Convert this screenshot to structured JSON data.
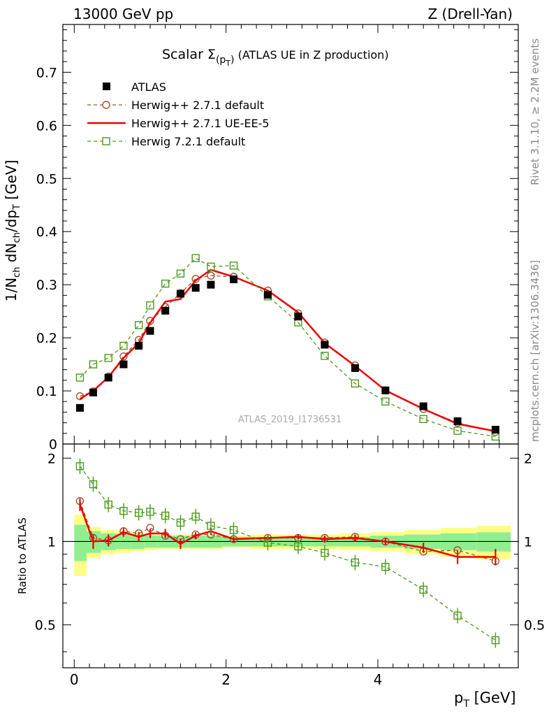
{
  "header": {
    "left": "13000 GeV pp",
    "right": "Z (Drell-Yan)"
  },
  "side_labels": {
    "top": "Rivet 3.1.10, ≥ 2.2M events",
    "bottom": "mcplots.cern.ch [arXiv:1306.3436]"
  },
  "chart_data": {
    "type": "line",
    "title_main": "Scalar Σ",
    "title_sub": "(p",
    "title_sub2": "T",
    "title_sub3": ")",
    "title_rest": " (ATLAS UE in Z production)",
    "analysis_label": "ATLAS_2019_I1736531",
    "xlabel": "p_T [GeV]",
    "xlabel_main": "p",
    "xlabel_sub": "T",
    "xlabel_unit": " [GeV]",
    "ylabel": "1/N_ch dN_ch/dp_T [GeV]",
    "ylabel_ratio": "Ratio to ATLAS",
    "xlim": [
      -0.15,
      5.85
    ],
    "ylim": [
      0,
      0.79
    ],
    "ratio_ylim": [
      0.35,
      2.25
    ],
    "x_ticks": [
      0,
      2,
      4
    ],
    "y_ticks": [
      0,
      0.1,
      0.2,
      0.3,
      0.4,
      0.5,
      0.6,
      0.7
    ],
    "y_tick_labels": [
      "0",
      "0.1",
      "0.2",
      "0.3",
      "0.4",
      "0.5",
      "0.6",
      "0.7"
    ],
    "ratio_ticks": [
      0.5,
      1,
      2
    ],
    "ratio_tick_labels": [
      "0.5",
      "1",
      "2"
    ],
    "x": [
      0.075,
      0.25,
      0.45,
      0.65,
      0.85,
      1.0,
      1.2,
      1.4,
      1.6,
      1.8,
      2.1,
      2.55,
      2.95,
      3.3,
      3.7,
      4.1,
      4.6,
      5.05,
      5.55
    ],
    "reference": {
      "name": "ATLAS",
      "values": [
        0.068,
        0.097,
        0.125,
        0.15,
        0.185,
        0.213,
        0.251,
        0.283,
        0.294,
        0.3,
        0.31,
        0.281,
        0.24,
        0.187,
        0.143,
        0.101,
        0.071,
        0.043,
        0.027
      ],
      "band_inner": [
        0.15,
        0.09,
        0.07,
        0.06,
        0.06,
        0.05,
        0.05,
        0.05,
        0.05,
        0.05,
        0.04,
        0.04,
        0.04,
        0.04,
        0.04,
        0.05,
        0.06,
        0.07,
        0.08
      ],
      "band_outer": [
        0.25,
        0.13,
        0.1,
        0.09,
        0.08,
        0.07,
        0.06,
        0.06,
        0.06,
        0.06,
        0.05,
        0.06,
        0.06,
        0.06,
        0.07,
        0.08,
        0.1,
        0.12,
        0.14
      ],
      "color": "#000000"
    },
    "series": [
      {
        "name": "Herwig++ 2.7.1 default",
        "values": [
          0.09,
          0.099,
          0.127,
          0.165,
          0.196,
          0.232,
          0.258,
          0.284,
          0.311,
          0.317,
          0.315,
          0.289,
          0.246,
          0.191,
          0.148,
          0.101,
          0.066,
          0.04,
          0.023
        ],
        "ratio": [
          1.4,
          1.03,
          1.01,
          1.09,
          1.07,
          1.12,
          1.05,
          1.02,
          1.06,
          1.06,
          1.02,
          1.03,
          1.03,
          1.03,
          1.04,
          1.0,
          0.92,
          0.93,
          0.85
        ],
        "color": "#a0522d",
        "style": "dashed",
        "marker": "circle"
      },
      {
        "name": "Herwig++ 2.7.1 UE-EE-5",
        "values": [
          0.085,
          0.1,
          0.126,
          0.162,
          0.19,
          0.228,
          0.268,
          0.273,
          0.308,
          0.328,
          0.315,
          0.289,
          0.248,
          0.19,
          0.147,
          0.101,
          0.066,
          0.038,
          0.024
        ],
        "ratio": [
          1.36,
          1.0,
          1.01,
          1.08,
          1.04,
          1.07,
          1.07,
          0.98,
          1.05,
          1.09,
          1.02,
          1.03,
          1.04,
          1.02,
          1.03,
          1.0,
          0.95,
          0.88,
          0.88
        ],
        "ratio_err": [
          0.07,
          0.06,
          0.05,
          0.04,
          0.04,
          0.04,
          0.04,
          0.04,
          0.03,
          0.03,
          0.02,
          0.02,
          0.02,
          0.03,
          0.03,
          0.03,
          0.04,
          0.05,
          0.06
        ],
        "color": "#ee0000",
        "style": "solid",
        "marker": "none"
      },
      {
        "name": "Herwig 7.2.1 default",
        "values": [
          0.125,
          0.15,
          0.162,
          0.185,
          0.224,
          0.261,
          0.302,
          0.321,
          0.35,
          0.334,
          0.336,
          0.278,
          0.229,
          0.166,
          0.114,
          0.08,
          0.047,
          0.025,
          0.014
        ],
        "ratio": [
          1.87,
          1.61,
          1.36,
          1.29,
          1.27,
          1.28,
          1.24,
          1.17,
          1.23,
          1.14,
          1.1,
          0.99,
          0.96,
          0.91,
          0.84,
          0.81,
          0.67,
          0.54,
          0.44
        ],
        "color": "#4a9a1a",
        "style": "dashed",
        "marker": "square"
      }
    ],
    "colors": {
      "band_inner": "#90ee90",
      "band_outer": "#ffff88"
    }
  }
}
